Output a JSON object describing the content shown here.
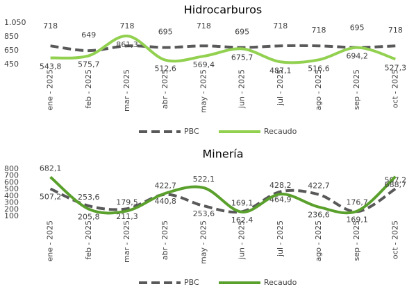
{
  "chart_data": [
    {
      "type": "line",
      "title": "Hidrocarburos",
      "categories": [
        "ene - 2025",
        "feb - 2025",
        "mar - 2025",
        "abr - 2025",
        "may - 2025",
        "jun - 2025",
        "jul - 2025",
        "ago - 2025",
        "sep - 2025",
        "oct - 2025"
      ],
      "series": [
        {
          "name": "PBC",
          "color": "#595959",
          "dashed": true,
          "values": [
            718,
            649,
            718,
            695,
            718,
            695,
            718,
            718,
            695,
            718
          ]
        },
        {
          "name": "Recaudo",
          "color": "#92d050",
          "dashed": false,
          "values": [
            543.8,
            575.7,
            861.3,
            512.6,
            569.4,
            675.7,
            487.1,
            516.6,
            694.2,
            527.3
          ],
          "value_labels": [
            "543,8",
            "575,7",
            "861,3",
            "512,6",
            "569,4",
            "675,7",
            "487,1",
            "516,6",
            "694,2",
            "527,3"
          ]
        }
      ],
      "ylim": [
        450,
        1050
      ],
      "yticks": [
        450,
        650,
        850,
        {
          "value": 1050,
          "label": "1.050"
        }
      ]
    },
    {
      "type": "line",
      "title": "Minería",
      "categories": [
        "ene - 2025",
        "feb - 2025",
        "mar - 2025",
        "abr - 2025",
        "may - 2025",
        "jun - 2025",
        "jul - 2025",
        "ago - 2025",
        "sep - 2025",
        "oct - 2025"
      ],
      "series": [
        {
          "name": "PBC",
          "color": "#595959",
          "dashed": true,
          "values": [
            507.2,
            253.6,
            211.3,
            422.7,
            253.6,
            169.1,
            464.9,
            422.7,
            169.1,
            507.2
          ],
          "value_labels": [
            "507,2",
            "253,6",
            "211,3",
            "422,7",
            "253,6",
            "169,1",
            "464,9",
            "422,7",
            "169,1",
            "507,2"
          ]
        },
        {
          "name": "Recaudo",
          "color": "#5aa02c",
          "dashed": false,
          "values": [
            682.1,
            205.8,
            179.5,
            440.8,
            522.1,
            162.4,
            428.2,
            236.6,
            176.7,
            688.7
          ],
          "value_labels": [
            "682,1",
            "205,8",
            "179,5",
            "440,8",
            "522,1",
            "162,4",
            "428,2",
            "236,6",
            "176,7",
            "688,7"
          ]
        }
      ],
      "ylim": [
        100,
        800
      ],
      "yticks": [
        100,
        200,
        300,
        400,
        500,
        600,
        700,
        800
      ]
    }
  ]
}
